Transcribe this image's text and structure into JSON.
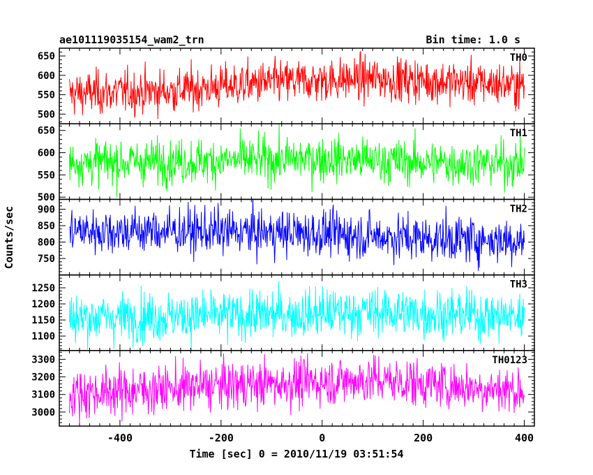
{
  "chart_data": {
    "type": "line",
    "title_left": "ae101119035154_wam2_trn",
    "title_right": "Bin time: 1.0 s",
    "xlabel": "Time [sec] 0 = 2010/11/19 03:51:54",
    "ylabel": "Counts/sec",
    "xlim": [
      -520,
      420
    ],
    "x_ticks": [
      -400,
      -200,
      0,
      200,
      400
    ],
    "x_range": [
      -500,
      400
    ],
    "panels": [
      {
        "name": "TH0",
        "color": "#ff0000",
        "ylim": [
          475,
          670
        ],
        "y_ticks": [
          500,
          550,
          600,
          650
        ],
        "trend": [
          [
            -500,
            553
          ],
          [
            -300,
            560
          ],
          [
            -100,
            582
          ],
          [
            100,
            592
          ],
          [
            400,
            575
          ]
        ],
        "noise": 28
      },
      {
        "name": "TH1",
        "color": "#00ff00",
        "ylim": [
          495,
          665
        ],
        "y_ticks": [
          500,
          550,
          600,
          650
        ],
        "trend": [
          [
            -500,
            578
          ],
          [
            -200,
            582
          ],
          [
            0,
            587
          ],
          [
            200,
            578
          ],
          [
            400,
            575
          ]
        ],
        "noise": 25
      },
      {
        "name": "TH2",
        "color": "#0000ff",
        "ylim": [
          700,
          930
        ],
        "y_ticks": [
          750,
          800,
          850,
          900
        ],
        "trend": [
          [
            -500,
            835
          ],
          [
            -200,
            832
          ],
          [
            0,
            826
          ],
          [
            200,
            812
          ],
          [
            400,
            805
          ]
        ],
        "noise": 35
      },
      {
        "name": "TH3",
        "color": "#00ffff",
        "ylim": [
          1055,
          1290
        ],
        "y_ticks": [
          1100,
          1150,
          1200,
          1250
        ],
        "trend": [
          [
            -500,
            1157
          ],
          [
            -100,
            1166
          ],
          [
            100,
            1176
          ],
          [
            400,
            1160
          ]
        ],
        "noise": 38
      },
      {
        "name": "TH0123",
        "color": "#ff00ff",
        "ylim": [
          2920,
          3350
        ],
        "y_ticks": [
          3000,
          3100,
          3200,
          3300
        ],
        "trend": [
          [
            -500,
            3105
          ],
          [
            -200,
            3150
          ],
          [
            100,
            3185
          ],
          [
            400,
            3120
          ]
        ],
        "noise": 68
      }
    ]
  }
}
